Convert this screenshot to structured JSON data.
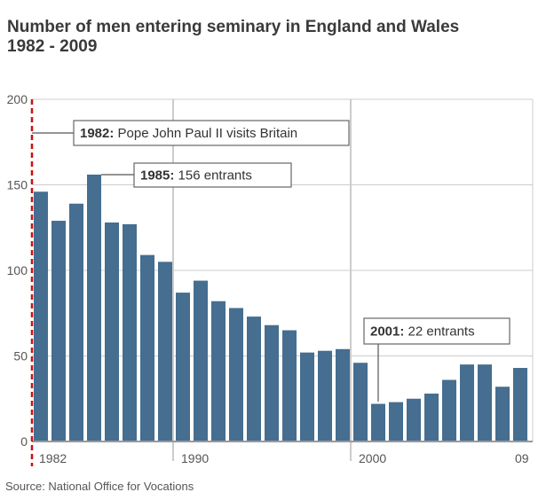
{
  "chart_data": {
    "type": "bar",
    "title": "Number of men entering seminary in England and Wales",
    "subtitle": "1982 - 2009",
    "categories": [
      1982,
      1983,
      1984,
      1985,
      1986,
      1987,
      1988,
      1989,
      1990,
      1991,
      1992,
      1993,
      1994,
      1995,
      1996,
      1997,
      1998,
      1999,
      2000,
      2001,
      2002,
      2003,
      2004,
      2005,
      2006,
      2007,
      2008,
      2009
    ],
    "values": [
      146,
      129,
      139,
      156,
      128,
      127,
      109,
      105,
      87,
      94,
      82,
      78,
      73,
      68,
      65,
      52,
      53,
      54,
      46,
      22,
      23,
      25,
      28,
      36,
      45,
      45,
      32,
      43
    ],
    "ylim": [
      0,
      200
    ],
    "yticks": [
      "0",
      "50",
      "100",
      "150",
      "200"
    ],
    "xticks": [
      {
        "year": 1982,
        "label": "1982"
      },
      {
        "year": 1990,
        "label": "1990"
      },
      {
        "year": 2000,
        "label": "2000"
      },
      {
        "year": 2009,
        "label": "09"
      }
    ],
    "grid": true,
    "colors": {
      "bar": "#456e90",
      "marker_line": "#cc1111"
    },
    "annotations": [
      {
        "year": 1982,
        "bold": "1982:",
        "text": " Pope John Paul II visits Britain"
      },
      {
        "year": 1985,
        "bold": "1985:",
        "text": " 156 entrants"
      },
      {
        "year": 2001,
        "bold": "2001:",
        "text": " 22 entrants"
      }
    ],
    "source": "Source: National Office for  Vocations"
  }
}
